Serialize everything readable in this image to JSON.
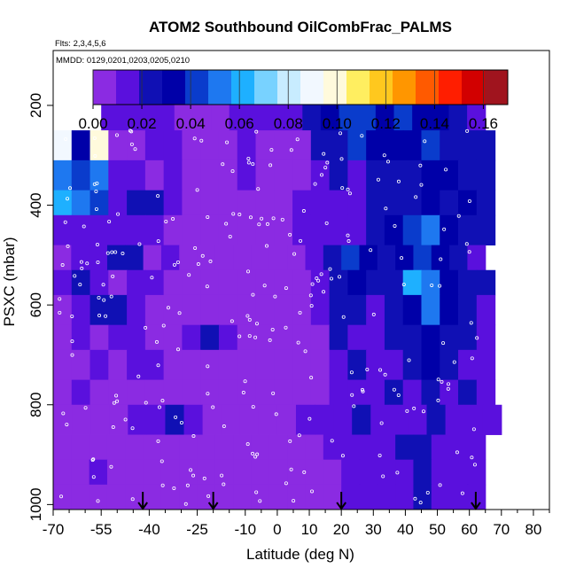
{
  "chart_data": {
    "type": "heatmap",
    "title": "ATOM2 Southbound OilCombFrac_PALMS",
    "flights_label": "Flts: 2,3,4,5,6",
    "dates_label": "MMDD: 0129,0201,0203,0205,0210",
    "xlabel": "Latitude (deg N)",
    "ylabel": "PSXC (mbar)",
    "xlim": [
      -70,
      85
    ],
    "ylim": [
      1010,
      90
    ],
    "x_ticks": [
      -70,
      -55,
      -40,
      -25,
      -10,
      0,
      10,
      20,
      30,
      40,
      50,
      60,
      70,
      80
    ],
    "x_tick_labels": [
      "-70",
      "-55",
      "-40",
      "-25",
      "-10",
      "0",
      "10",
      "20",
      "30",
      "40",
      "50",
      "60",
      "70",
      "80"
    ],
    "x_minor_ticks": [
      -65,
      -60,
      -50,
      -45,
      -35,
      -30,
      -20,
      -15,
      -5,
      5,
      15,
      25,
      35,
      45,
      55,
      65,
      75,
      85
    ],
    "y_ticks": [
      200,
      400,
      600,
      800,
      1000
    ],
    "y_tick_labels": [
      "200",
      "400",
      "600",
      "800",
      "1000"
    ],
    "colorbar": {
      "min": 0.0,
      "max": 0.17,
      "ticks": [
        0.0,
        0.02,
        0.04,
        0.06,
        0.08,
        0.1,
        0.12,
        0.14,
        0.16
      ],
      "tick_labels": [
        "0.00",
        "0.02",
        "0.04",
        "0.06",
        "0.08",
        "0.10",
        "0.12",
        "0.14",
        "0.16"
      ],
      "colors": [
        "#8b2be2",
        "#5a10dd",
        "#1010b4",
        "#0000a8",
        "#0a3ccc",
        "#1e78f0",
        "#1eb0ff",
        "#78d2ff",
        "#c8ecff",
        "#f2f8ff",
        "#fffadc",
        "#ffee60",
        "#ffc81e",
        "#ff9600",
        "#ff5a00",
        "#ff1e00",
        "#d20000",
        "#a0141e"
      ]
    },
    "arrows_latitude": [
      -42,
      -20,
      20,
      62
    ],
    "layers": [
      {
        "p_top": 180,
        "p_bot": 250,
        "x_min": -55,
        "x_max": 65,
        "values": [
          0.01,
          0.01,
          0.01,
          0.01,
          0.005,
          0.005,
          0.005,
          0.01,
          0.01,
          0.015,
          0.015,
          0.02,
          0.03,
          0.04,
          0.045,
          0.035,
          0.04,
          0.03,
          0.03,
          0.02,
          0.015
        ]
      },
      {
        "p_top": 250,
        "p_bot": 310,
        "x_min": -70,
        "x_max": 68,
        "values": [
          0.09,
          0.03,
          0.1,
          0.005,
          0.005,
          0.01,
          0.015,
          0.005,
          0.005,
          0.005,
          0.01,
          0.005,
          0.005,
          0.005,
          0.02,
          0.025,
          0.04,
          0.03,
          0.035,
          0.03,
          0.045,
          0.02,
          0.025,
          0.02
        ]
      },
      {
        "p_top": 310,
        "p_bot": 370,
        "x_min": -70,
        "x_max": 68,
        "values": [
          0.05,
          0.045,
          0.05,
          0.015,
          0.01,
          0.005,
          0.015,
          0.005,
          0.005,
          0.005,
          0.01,
          0.005,
          0.005,
          0.005,
          0.01,
          0.025,
          0.015,
          0.02,
          0.02,
          0.02,
          0.035,
          0.035,
          0.025,
          0.02
        ]
      },
      {
        "p_top": 370,
        "p_bot": 420,
        "x_min": -70,
        "x_max": 68,
        "values": [
          0.06,
          0.05,
          0.045,
          0.015,
          0.02,
          0.02,
          0.01,
          0.005,
          0.005,
          0.005,
          0.005,
          0.005,
          0.005,
          0.01,
          0.015,
          0.01,
          0.015,
          0.02,
          0.02,
          0.025,
          0.03,
          0.025,
          0.03,
          0.02
        ]
      },
      {
        "p_top": 420,
        "p_bot": 480,
        "x_min": -70,
        "x_max": 68,
        "values": [
          0.01,
          0.015,
          0.01,
          0.01,
          0.015,
          0.015,
          0.005,
          0.005,
          0.005,
          0.005,
          0.005,
          0.005,
          0.005,
          0.01,
          0.015,
          0.015,
          0.015,
          0.02,
          0.03,
          0.045,
          0.05,
          0.035,
          0.02,
          0.02
        ]
      },
      {
        "p_top": 480,
        "p_bot": 530,
        "x_min": -70,
        "x_max": 65,
        "values": [
          0.005,
          0.01,
          0.015,
          0.02,
          0.02,
          0.005,
          0.01,
          0.005,
          0.005,
          0.005,
          0.005,
          0.005,
          0.005,
          0.005,
          0.01,
          0.025,
          0.045,
          0.03,
          0.025,
          0.03,
          0.04,
          0.035,
          0.02,
          0.015
        ]
      },
      {
        "p_top": 530,
        "p_bot": 580,
        "x_min": -70,
        "x_max": 68,
        "values": [
          0.015,
          0.02,
          0.01,
          0.005,
          0.01,
          0.01,
          0.005,
          0.005,
          0.005,
          0.005,
          0.005,
          0.005,
          0.005,
          0.005,
          0.015,
          0.025,
          0.03,
          0.02,
          0.025,
          0.06,
          0.055,
          0.03,
          0.025,
          0.02
        ]
      },
      {
        "p_top": 580,
        "p_bot": 640,
        "x_min": -70,
        "x_max": 68,
        "values": [
          0.005,
          0.015,
          0.02,
          0.02,
          0.015,
          0.005,
          0.005,
          0.005,
          0.005,
          0.005,
          0.005,
          0.005,
          0.005,
          0.005,
          0.01,
          0.025,
          0.02,
          0.015,
          0.02,
          0.03,
          0.05,
          0.035,
          0.02,
          0.015
        ]
      },
      {
        "p_top": 640,
        "p_bot": 690,
        "x_min": -70,
        "x_max": 68,
        "values": [
          0.005,
          0.01,
          0.005,
          0.015,
          0.01,
          0.005,
          0.005,
          0.01,
          0.025,
          0.015,
          0.005,
          0.005,
          0.005,
          0.005,
          0.005,
          0.02,
          0.015,
          0.015,
          0.02,
          0.025,
          0.035,
          0.02,
          0.02,
          0.015
        ]
      },
      {
        "p_top": 690,
        "p_bot": 750,
        "x_min": -70,
        "x_max": 68,
        "values": [
          0.005,
          0.005,
          0.015,
          0.005,
          0.01,
          0.015,
          0.005,
          0.005,
          0.005,
          0.005,
          0.005,
          0.005,
          0.005,
          0.005,
          0.005,
          0.015,
          0.02,
          0.015,
          0.015,
          0.02,
          0.03,
          0.02,
          0.015,
          0.01
        ]
      },
      {
        "p_top": 750,
        "p_bot": 800,
        "x_min": -70,
        "x_max": 68,
        "values": [
          0.005,
          0.01,
          0.005,
          0.005,
          0.005,
          0.005,
          0.005,
          0.005,
          0.005,
          0.005,
          0.005,
          0.005,
          0.005,
          0.005,
          0.005,
          0.01,
          0.015,
          0.015,
          0.02,
          0.015,
          0.02,
          0.015,
          0.02,
          0.01
        ]
      },
      {
        "p_top": 800,
        "p_bot": 860,
        "x_min": -70,
        "x_max": 70,
        "values": [
          0.005,
          0.005,
          0.005,
          0.005,
          0.01,
          0.015,
          0.02,
          0.015,
          0.005,
          0.005,
          0.005,
          0.005,
          0.005,
          0.01,
          0.01,
          0.015,
          0.02,
          0.015,
          0.015,
          0.015,
          0.02,
          0.015,
          0.01,
          0.015
        ]
      },
      {
        "p_top": 860,
        "p_bot": 910,
        "x_min": -70,
        "x_max": 65,
        "values": [
          0.005,
          0.005,
          0.005,
          0.005,
          0.005,
          0.005,
          0.005,
          0.005,
          0.005,
          0.005,
          0.005,
          0.005,
          0.005,
          0.005,
          0.005,
          0.01,
          0.015,
          0.015,
          0.015,
          0.02,
          0.025,
          0.015,
          0.015,
          0.01
        ]
      },
      {
        "p_top": 910,
        "p_bot": 960,
        "x_min": -70,
        "x_max": 65,
        "values": [
          0.005,
          0.005,
          0.015,
          0.005,
          0.005,
          0.005,
          0.005,
          0.005,
          0.005,
          0.005,
          0.005,
          0.005,
          0.005,
          0.005,
          0.005,
          0.005,
          0.01,
          0.015,
          0.015,
          0.015,
          0.02,
          0.015,
          0.015,
          0.01
        ]
      },
      {
        "p_top": 960,
        "p_bot": 1010,
        "x_min": -70,
        "x_max": 65,
        "values": [
          0.005,
          0.005,
          0.005,
          0.005,
          0.005,
          0.005,
          0.005,
          0.005,
          0.005,
          0.005,
          0.005,
          0.005,
          0.005,
          0.005,
          0.005,
          0.005,
          0.01,
          0.01,
          0.015,
          0.015,
          0.02,
          0.015,
          0.015,
          0.01
        ]
      }
    ],
    "grid": false,
    "legend_position": "top"
  }
}
